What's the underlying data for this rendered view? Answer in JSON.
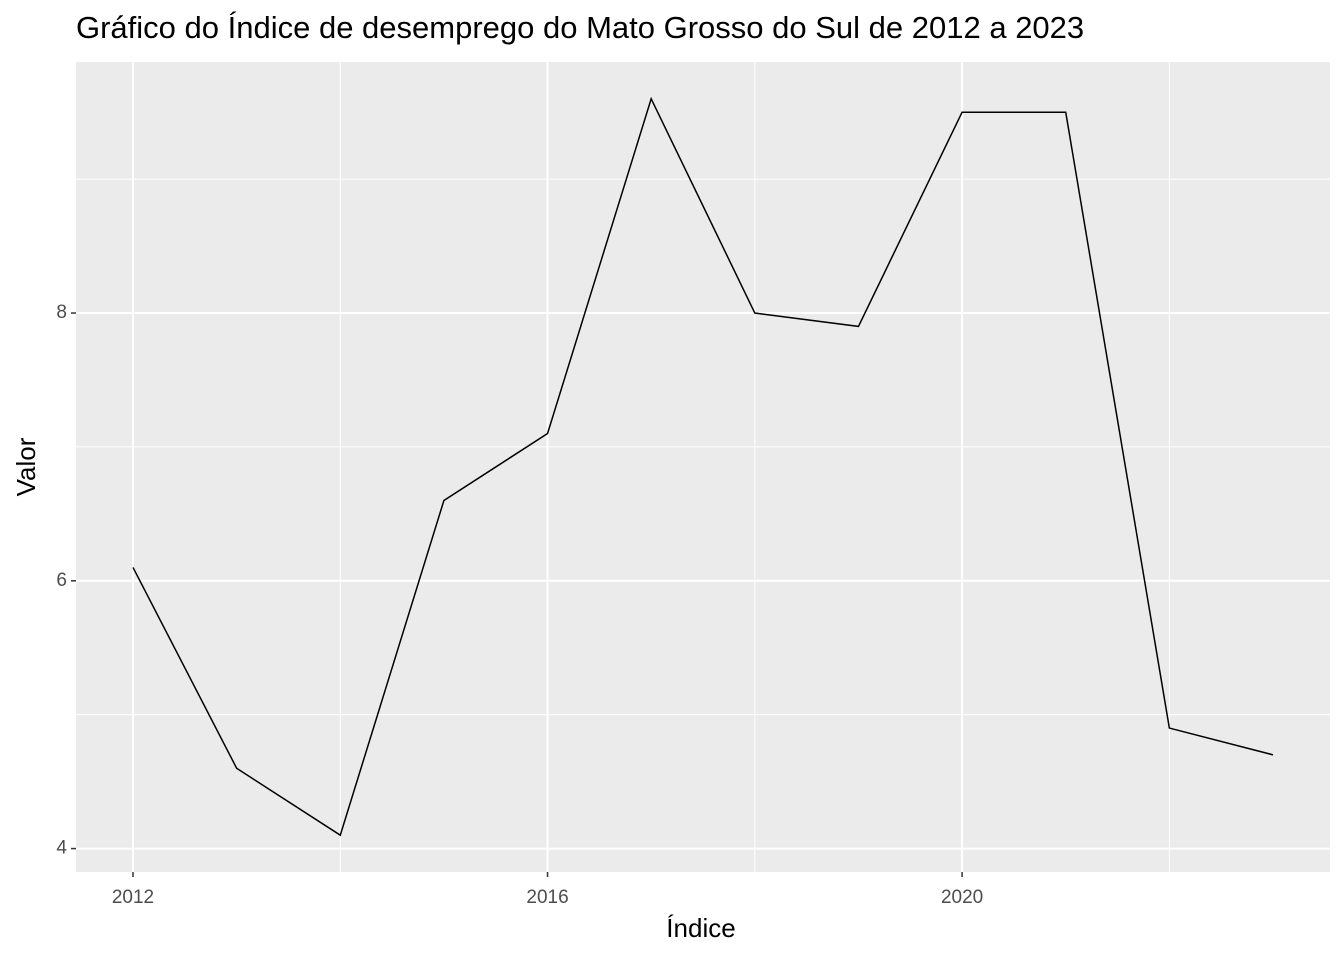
{
  "chart_data": {
    "type": "line",
    "title": "Gráfico do Índice de desemprego do Mato Grosso do Sul de 2012 a 2023",
    "x_label": "Índice",
    "y_label": "Valor",
    "x": [
      2012,
      2013,
      2014,
      2015,
      2016,
      2017,
      2018,
      2019,
      2020,
      2021,
      2022,
      2023
    ],
    "series": [
      {
        "name": "Valor",
        "color": "#000000",
        "values": [
          6.1,
          4.6,
          4.1,
          6.6,
          7.1,
          9.6,
          8.0,
          7.9,
          9.5,
          9.5,
          4.9,
          4.7
        ]
      }
    ],
    "xlim": [
      2011.45,
      2023.55
    ],
    "xticks": [
      2012,
      2016,
      2020
    ],
    "ylim": [
      3.825,
      9.875
    ],
    "yticks": [
      4,
      6,
      8
    ],
    "grid": true
  }
}
